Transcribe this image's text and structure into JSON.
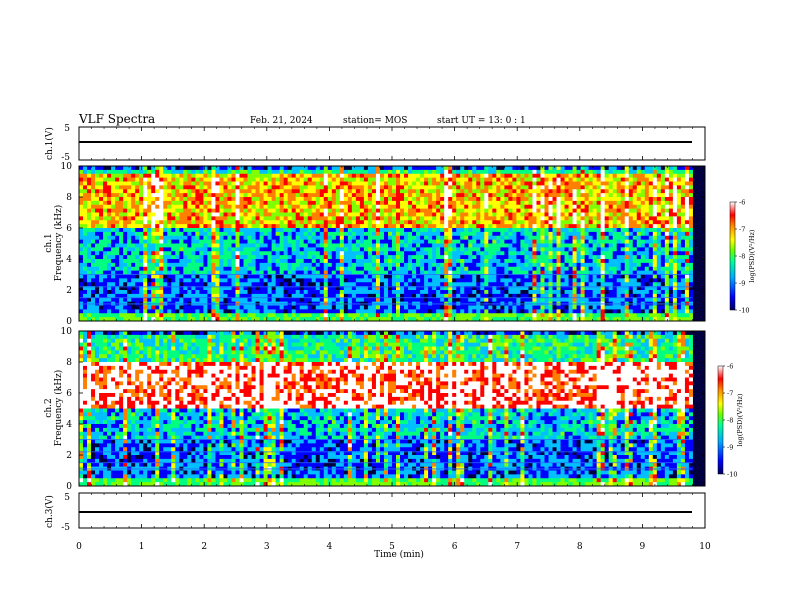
{
  "header": {
    "title": "VLF Spectra",
    "date": "Feb. 21, 2024",
    "station": "station= MOS",
    "start": "start  UT =   13: 0  : 1"
  },
  "chart_data": [
    {
      "type": "line",
      "panel": "waveform-ch1",
      "ylabel": "ch.1(V)",
      "ylim": [
        -5,
        5
      ],
      "y_ticks": [
        "5",
        "-5"
      ],
      "baseline": 0
    },
    {
      "type": "heatmap",
      "panel": "spectrogram-ch1",
      "ylabel": "ch.1\nFrequency (kHz)",
      "ylim": [
        0,
        10
      ],
      "y_ticks": [
        "0",
        "2",
        "4",
        "6",
        "8",
        "10"
      ],
      "colorbar": {
        "label": "log(PSD)(V²/Hz)",
        "ticks": [
          "-6",
          "-7",
          "-8",
          "-9",
          "-10"
        ],
        "range": [
          -10,
          -6
        ]
      },
      "dominant_band_khz": [
        6,
        9.5
      ]
    },
    {
      "type": "heatmap",
      "panel": "spectrogram-ch2",
      "ylabel": "ch.2\nFrequency (kHz)",
      "ylim": [
        0,
        10
      ],
      "y_ticks": [
        "0",
        "2",
        "4",
        "6",
        "8",
        "10"
      ],
      "colorbar": {
        "label": "log(PSD)(V²/Hz)",
        "ticks": [
          "-6",
          "-7",
          "-8",
          "-9",
          "-10"
        ],
        "range": [
          -10,
          -6
        ]
      },
      "dominant_band_khz": [
        5,
        8
      ]
    },
    {
      "type": "line",
      "panel": "waveform-ch3",
      "ylabel": "ch.3(V)",
      "ylim": [
        -5,
        5
      ],
      "y_ticks": [
        "5",
        "-5"
      ],
      "baseline": 0
    }
  ],
  "xaxis": {
    "label": "Time  (min)",
    "xlim": [
      0,
      10
    ],
    "ticks": [
      "0",
      "1",
      "2",
      "3",
      "4",
      "5",
      "6",
      "7",
      "8",
      "9",
      "10"
    ]
  },
  "colors": {
    "colormap": [
      "#000040",
      "#0000ff",
      "#00c0ff",
      "#00ff80",
      "#80ff00",
      "#ffff00",
      "#ff8000",
      "#ff0000",
      "#ffffff"
    ]
  }
}
